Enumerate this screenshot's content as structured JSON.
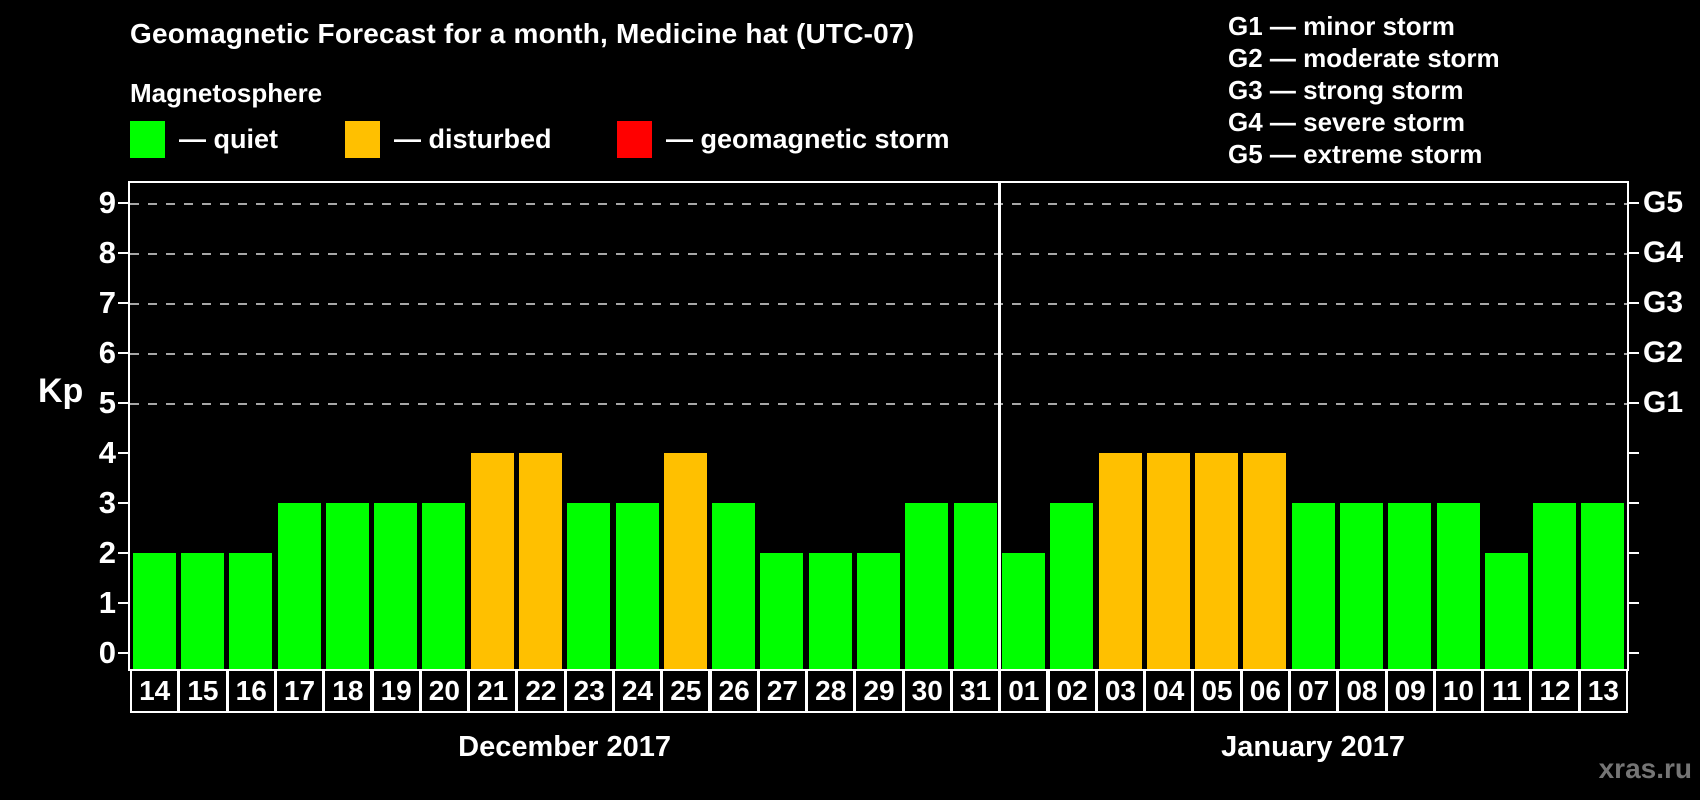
{
  "header": {
    "title": "Geomagnetic Forecast for a month, Medicine hat (UTC-07)"
  },
  "legend": {
    "title": "Magnetosphere",
    "items": [
      {
        "key": "quiet",
        "label": "— quiet",
        "color": "#00ff00"
      },
      {
        "key": "disturbed",
        "label": "— disturbed",
        "color": "#ffc000"
      },
      {
        "key": "storm",
        "label": "— geomagnetic storm",
        "color": "#ff0000"
      }
    ]
  },
  "g_scale_legend": [
    "G1 — minor storm",
    "G2 — moderate storm",
    "G3 — strong storm",
    "G4 — severe storm",
    "G5 — extreme storm"
  ],
  "chart_data": {
    "type": "bar",
    "title": "Geomagnetic Forecast for a month, Medicine hat (UTC-07)",
    "ylabel": "Kp",
    "ylim": [
      0,
      9.4
    ],
    "yticks": [
      0,
      1,
      2,
      3,
      4,
      5,
      6,
      7,
      8,
      9
    ],
    "gridlines_at": [
      5,
      6,
      7,
      8,
      9
    ],
    "grid": "dashed horizontal at storm levels only",
    "right_axis_labels": [
      {
        "kp": 5,
        "label": "G1"
      },
      {
        "kp": 6,
        "label": "G2"
      },
      {
        "kp": 7,
        "label": "G3"
      },
      {
        "kp": 8,
        "label": "G4"
      },
      {
        "kp": 9,
        "label": "G5"
      }
    ],
    "colors": {
      "quiet": "#00ff00",
      "disturbed": "#ffc000",
      "storm": "#ff0000"
    },
    "months": [
      {
        "label": "December 2017",
        "days": [
          {
            "day": "14",
            "kp": 2,
            "state": "quiet"
          },
          {
            "day": "15",
            "kp": 2,
            "state": "quiet"
          },
          {
            "day": "16",
            "kp": 2,
            "state": "quiet"
          },
          {
            "day": "17",
            "kp": 3,
            "state": "quiet"
          },
          {
            "day": "18",
            "kp": 3,
            "state": "quiet"
          },
          {
            "day": "19",
            "kp": 3,
            "state": "quiet"
          },
          {
            "day": "20",
            "kp": 3,
            "state": "quiet"
          },
          {
            "day": "21",
            "kp": 4,
            "state": "disturbed"
          },
          {
            "day": "22",
            "kp": 4,
            "state": "disturbed"
          },
          {
            "day": "23",
            "kp": 3,
            "state": "quiet"
          },
          {
            "day": "24",
            "kp": 3,
            "state": "quiet"
          },
          {
            "day": "25",
            "kp": 4,
            "state": "disturbed"
          },
          {
            "day": "26",
            "kp": 3,
            "state": "quiet"
          },
          {
            "day": "27",
            "kp": 2,
            "state": "quiet"
          },
          {
            "day": "28",
            "kp": 2,
            "state": "quiet"
          },
          {
            "day": "29",
            "kp": 2,
            "state": "quiet"
          },
          {
            "day": "30",
            "kp": 3,
            "state": "quiet"
          },
          {
            "day": "31",
            "kp": 3,
            "state": "quiet"
          }
        ]
      },
      {
        "label": "January 2017",
        "days": [
          {
            "day": "01",
            "kp": 2,
            "state": "quiet"
          },
          {
            "day": "02",
            "kp": 3,
            "state": "quiet"
          },
          {
            "day": "03",
            "kp": 4,
            "state": "disturbed"
          },
          {
            "day": "04",
            "kp": 4,
            "state": "disturbed"
          },
          {
            "day": "05",
            "kp": 4,
            "state": "disturbed"
          },
          {
            "day": "06",
            "kp": 4,
            "state": "disturbed"
          },
          {
            "day": "07",
            "kp": 3,
            "state": "quiet"
          },
          {
            "day": "08",
            "kp": 3,
            "state": "quiet"
          },
          {
            "day": "09",
            "kp": 3,
            "state": "quiet"
          },
          {
            "day": "10",
            "kp": 3,
            "state": "quiet"
          },
          {
            "day": "11",
            "kp": 2,
            "state": "quiet"
          },
          {
            "day": "12",
            "kp": 3,
            "state": "quiet"
          },
          {
            "day": "13",
            "kp": 3,
            "state": "quiet"
          }
        ]
      }
    ]
  },
  "watermark": "xras.ru"
}
